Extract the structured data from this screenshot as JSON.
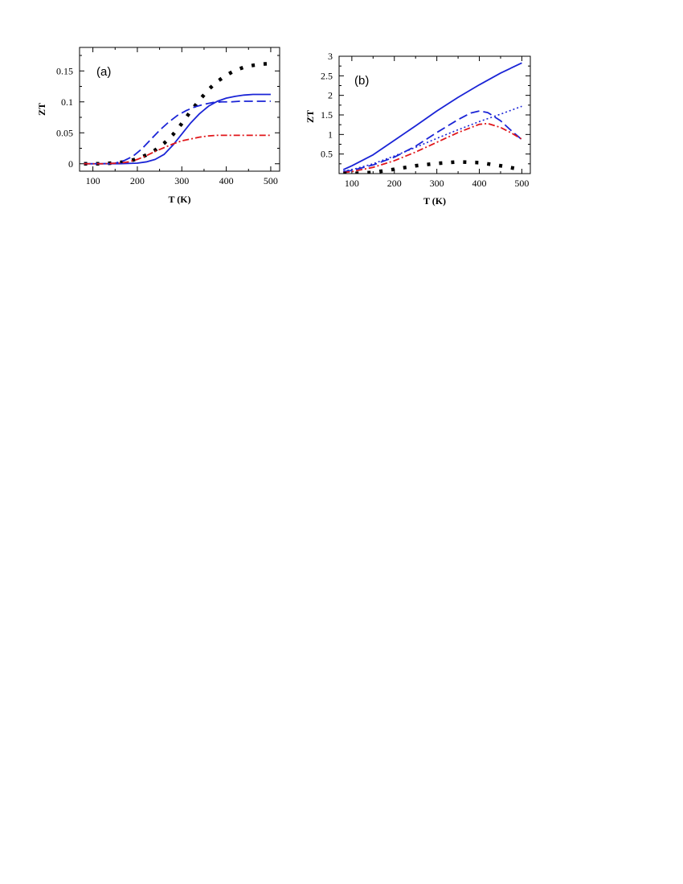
{
  "chart_data": [
    {
      "type": "line",
      "panel_label": "(a)",
      "xlabel": "T (K)",
      "ylabel": "ZT",
      "xlim": [
        70,
        520
      ],
      "ylim": [
        -0.012,
        0.188
      ],
      "xticks": [
        100,
        200,
        300,
        400,
        500
      ],
      "yticks": [
        0,
        0.05,
        0.1,
        0.15
      ],
      "ytick_labels": [
        "0",
        "0.05",
        "0.1",
        "0.15"
      ],
      "grid": false,
      "series": [
        {
          "style": "dotted-thick",
          "color": "#000000",
          "x": [
            80,
            100,
            120,
            140,
            160,
            180,
            200,
            220,
            240,
            260,
            280,
            300,
            320,
            340,
            360,
            380,
            400,
            420,
            440,
            460,
            480,
            500
          ],
          "y": [
            0.0,
            0.0,
            0.0,
            0.001,
            0.002,
            0.004,
            0.008,
            0.014,
            0.022,
            0.033,
            0.047,
            0.065,
            0.085,
            0.103,
            0.12,
            0.133,
            0.143,
            0.151,
            0.156,
            0.159,
            0.161,
            0.162
          ]
        },
        {
          "style": "solid",
          "color": "#1a24d6",
          "x": [
            80,
            120,
            160,
            200,
            220,
            240,
            260,
            280,
            300,
            320,
            340,
            360,
            380,
            400,
            420,
            440,
            460,
            480,
            500
          ],
          "y": [
            0.0,
            0.0,
            0.0,
            0.001,
            0.003,
            0.007,
            0.015,
            0.03,
            0.048,
            0.066,
            0.081,
            0.093,
            0.101,
            0.106,
            0.109,
            0.111,
            0.112,
            0.112,
            0.112
          ]
        },
        {
          "style": "dashed",
          "color": "#1a24d6",
          "x": [
            80,
            120,
            150,
            170,
            190,
            210,
            230,
            250,
            270,
            290,
            310,
            330,
            350,
            370,
            390,
            410,
            430,
            450,
            470,
            500
          ],
          "y": [
            0.0,
            0.0,
            0.001,
            0.005,
            0.012,
            0.024,
            0.039,
            0.054,
            0.067,
            0.078,
            0.086,
            0.092,
            0.096,
            0.099,
            0.1,
            0.1,
            0.101,
            0.101,
            0.101,
            0.101
          ]
        },
        {
          "style": "dash-dot",
          "color": "#e0161a",
          "x": [
            80,
            120,
            160,
            180,
            200,
            220,
            240,
            260,
            280,
            300,
            320,
            340,
            360,
            380,
            400,
            420,
            440,
            460,
            480,
            500
          ],
          "y": [
            0.0,
            0.0,
            0.001,
            0.003,
            0.007,
            0.013,
            0.02,
            0.026,
            0.032,
            0.037,
            0.04,
            0.043,
            0.045,
            0.046,
            0.046,
            0.046,
            0.046,
            0.046,
            0.046,
            0.046
          ]
        }
      ]
    },
    {
      "type": "line",
      "panel_label": "(b)",
      "xlabel": "T (K)",
      "ylabel": "ZT",
      "xlim": [
        70,
        520
      ],
      "ylim": [
        0,
        3
      ],
      "xticks": [
        100,
        200,
        300,
        400,
        500
      ],
      "yticks": [
        0.5,
        1,
        1.5,
        2,
        2.5,
        3
      ],
      "ytick_labels": [
        "0.5",
        "1",
        "1.5",
        "2",
        "2.5",
        "3"
      ],
      "grid": false,
      "series": [
        {
          "style": "solid",
          "color": "#1a24d6",
          "x": [
            80,
            100,
            150,
            200,
            250,
            300,
            350,
            400,
            450,
            500
          ],
          "y": [
            0.1,
            0.2,
            0.48,
            0.85,
            1.22,
            1.6,
            1.95,
            2.27,
            2.57,
            2.83
          ]
        },
        {
          "style": "dashed",
          "color": "#1a24d6",
          "x": [
            80,
            100,
            150,
            200,
            250,
            300,
            350,
            380,
            400,
            420,
            450,
            475,
            500
          ],
          "y": [
            0.05,
            0.08,
            0.22,
            0.42,
            0.7,
            1.05,
            1.38,
            1.55,
            1.6,
            1.56,
            1.35,
            1.1,
            0.87
          ]
        },
        {
          "style": "dotted",
          "color": "#1a24d6",
          "x": [
            80,
            100,
            150,
            200,
            250,
            300,
            350,
            400,
            450,
            500
          ],
          "y": [
            0.06,
            0.1,
            0.25,
            0.45,
            0.67,
            0.9,
            1.12,
            1.33,
            1.52,
            1.72
          ]
        },
        {
          "style": "dash-dot",
          "color": "#e0161a",
          "x": [
            80,
            100,
            150,
            200,
            250,
            300,
            350,
            400,
            420,
            450,
            475,
            500
          ],
          "y": [
            0.03,
            0.05,
            0.16,
            0.33,
            0.55,
            0.8,
            1.05,
            1.26,
            1.28,
            1.18,
            1.04,
            0.88
          ]
        },
        {
          "style": "dotted-thick",
          "color": "#000000",
          "x": [
            80,
            100,
            150,
            200,
            250,
            300,
            350,
            400,
            450,
            500
          ],
          "y": [
            0.0,
            0.0,
            0.03,
            0.11,
            0.2,
            0.26,
            0.3,
            0.28,
            0.2,
            0.1
          ]
        }
      ]
    }
  ]
}
